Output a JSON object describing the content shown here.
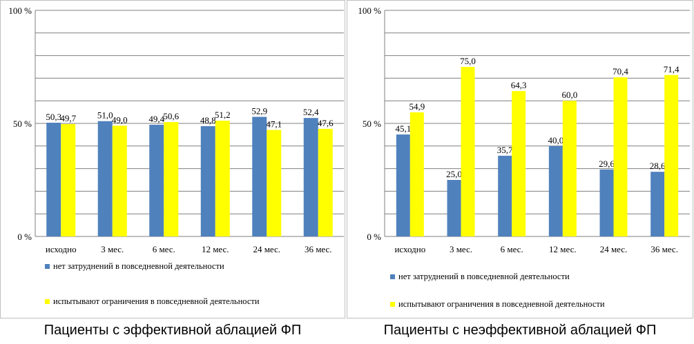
{
  "colors": {
    "series1": "#4f81bd",
    "series2": "#ffff00",
    "grid": "#7f7f7f"
  },
  "chart_data": [
    {
      "type": "bar",
      "title": "Пациенты с эффективной аблацией ФП",
      "categories": [
        "исходно",
        "3 мес.",
        "6 мес.",
        "12 мес.",
        "24 мес.",
        "36 мес."
      ],
      "series": [
        {
          "name": "нет затруднений в повседневной деятельности",
          "values": [
            50.3,
            51.0,
            49.4,
            48.8,
            52.9,
            52.4
          ],
          "labels": [
            "50,3",
            "51,0",
            "49,4",
            "48,8",
            "52,9",
            "52,4"
          ]
        },
        {
          "name": "испытывают ограничения в повседневной деятельности",
          "values": [
            49.7,
            49.0,
            50.6,
            51.2,
            47.1,
            47.6
          ],
          "labels": [
            "49,7",
            "49,0",
            "50,6",
            "51,2",
            "47,1",
            "47,6"
          ]
        }
      ],
      "yticks": [
        "0 %",
        "50 %",
        "100 %"
      ],
      "ylim": [
        0,
        100
      ],
      "legend": "bottom"
    },
    {
      "type": "bar",
      "title": "Пациенты с неэффективной аблацией ФП",
      "categories": [
        "исходно",
        "3 мес.",
        "6 мес.",
        "12 мес.",
        "24 мес.",
        "36 мес."
      ],
      "series": [
        {
          "name": "нет затруднений в повседневной деятельности",
          "values": [
            45.1,
            25.0,
            35.7,
            40.0,
            29.6,
            28.6
          ],
          "labels": [
            "45,1",
            "25,0",
            "35,7",
            "40,0",
            "29,6",
            "28,6"
          ]
        },
        {
          "name": "испытывают ограничения в повседневной деятельности",
          "values": [
            54.9,
            75.0,
            64.3,
            60.0,
            70.4,
            71.4
          ],
          "labels": [
            "54,9",
            "75,0",
            "64,3",
            "60,0",
            "70,4",
            "71,4"
          ]
        }
      ],
      "yticks": [
        "0 %",
        "50 %",
        "100 %"
      ],
      "ylim": [
        0,
        100
      ],
      "legend": "bottom"
    }
  ]
}
